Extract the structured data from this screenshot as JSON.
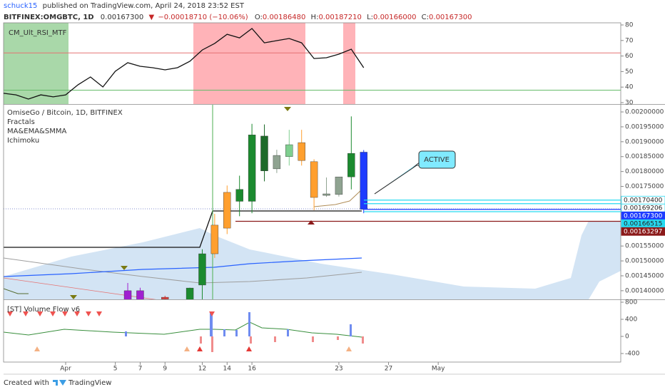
{
  "header": {
    "author": "schuck15",
    "published": "published on TradingView.com, April 24, 2018 23:52 EST",
    "symbol": "BITFINEX:OMGBTC, 1D",
    "last": "0.00167300",
    "arrow": "▼",
    "change": "−0.00018710 (−10.06%)",
    "ohlc": [
      {
        "key": "O:",
        "value": "0.00186480"
      },
      {
        "key": "H:",
        "value": "0.00187210"
      },
      {
        "key": "L:",
        "value": "0.00166000"
      },
      {
        "key": "C:",
        "value": "0.00167300"
      }
    ]
  },
  "chart_data": [
    {
      "type": "line",
      "title": "CM_Ult_RSI_MTF",
      "x": [
        -4,
        -3,
        -2,
        -1,
        0,
        1,
        2,
        3,
        4,
        5,
        6,
        7,
        8,
        9,
        10,
        11,
        12,
        13,
        14,
        15,
        16,
        17,
        18,
        19,
        20,
        21,
        22,
        23,
        24,
        25
      ],
      "series": [
        {
          "color": "#111111",
          "values": [
            36,
            35,
            32.3,
            35,
            33.7,
            35,
            41.5,
            46.5,
            40.1,
            50.2,
            55.7,
            53.4,
            52.5,
            51.1,
            52.5,
            56.6,
            63.9,
            68.1,
            74,
            71.7,
            77.7,
            68.5,
            69.9,
            71.3,
            68.5,
            58.4,
            58.9,
            61.2,
            64.4,
            52.5
          ]
        }
      ],
      "levels": [
        {
          "value": 62,
          "color": "#e57373"
        },
        {
          "value": 38,
          "color": "#66bb6a"
        }
      ],
      "ylim": [
        29.08,
        81.38
      ],
      "yticks": [
        30,
        40,
        50,
        60,
        70,
        80
      ],
      "xlim": [
        -4,
        45.7
      ]
    },
    {
      "type": "candlestick",
      "title": "OmiseGo / Bitcoin, 1D, BITFINEX",
      "indicators": [
        "Fractals",
        "MA&EMA&SMMA",
        "Ichimoku"
      ],
      "x": [
        6,
        7,
        9,
        11,
        12,
        13,
        14,
        15,
        16,
        17,
        18,
        19,
        20,
        21,
        22,
        23,
        24,
        25
      ],
      "open": [
        0.00136,
        0.00136,
        0.001378,
        0.00136,
        0.001419,
        0.001524,
        0.00161,
        0.0017,
        0.0017,
        0.001919,
        0.001809,
        0.00185,
        0.001897,
        0.001833,
        0.00172,
        0.001723,
        0.001782,
        0.001865
      ],
      "high": [
        0.001426,
        0.00141,
        0.001383,
        0.00141,
        0.001539,
        0.001658,
        0.001753,
        0.001786,
        0.00196,
        0.001958,
        0.001873,
        0.00194,
        0.00194,
        0.001841,
        0.00178,
        0.001782,
        0.001985,
        0.001872
      ],
      "low": [
        0.00135,
        0.00135,
        0.00136,
        0.00135,
        0.00136,
        0.00151,
        0.00159,
        0.00165,
        0.00166,
        0.001767,
        0.001795,
        0.00182,
        0.00182,
        0.00167,
        0.001715,
        0.001716,
        0.00174,
        0.00166
      ],
      "close": [
        0.0014,
        0.0014,
        0.001372,
        0.001409,
        0.001524,
        0.00162,
        0.00173,
        0.00174,
        0.001923,
        0.001802,
        0.001854,
        0.00189,
        0.001837,
        0.001713,
        0.001725,
        0.001782,
        0.001861,
        0.001673
      ],
      "colors": [
        "#a020d0",
        "#a020d0",
        "#e53935",
        "#1b8a2f",
        "#1b8a2f",
        "#ff9f2e",
        "#ff9f2e",
        "#1b8a2f",
        "#1b8a2f",
        "#1e6b2a",
        "#8fa391",
        "#7fcf8f",
        "#ff9f2e",
        "#ff9f2e",
        "#8fa391",
        "#8fa391",
        "#1b8a2f",
        "#1e3cff"
      ],
      "annotation": "ACTIVE",
      "price_lines": [
        {
          "value": 0.001704,
          "label": "0.00170400",
          "color": "#26d9f0",
          "bg": "#ffffff",
          "fg": "#222222"
        },
        {
          "value": 0.00169206,
          "label": "0.00169206",
          "color": "#26d9f0",
          "bg": "#ffffff",
          "fg": "#222222"
        },
        {
          "value": 0.001673,
          "label": "0.00167300",
          "color": "#1e3cff",
          "bg": "#1e3cff",
          "fg": "#ffffff"
        },
        {
          "value": 0.00166515,
          "label": "0.00166515",
          "color": "#26d9f0",
          "bg": "#26d9f0",
          "fg": "#222222"
        },
        {
          "value": 0.00163297,
          "label": "0.00163297",
          "color": "#8b1a1a",
          "bg": "#8b1a1a",
          "fg": "#ffffff"
        }
      ],
      "ylim": [
        0.001371,
        0.002024
      ],
      "yticks": [
        {
          "value": 0.002,
          "label": "0.00200000"
        },
        {
          "value": 0.00195,
          "label": "0.00195000"
        },
        {
          "value": 0.0019,
          "label": "0.00190000"
        },
        {
          "value": 0.00185,
          "label": "0.00185000"
        },
        {
          "value": 0.0018,
          "label": "0.00180000"
        },
        {
          "value": 0.00175,
          "label": "0.00175000"
        },
        {
          "value": 0.00155,
          "label": "0.00155000"
        },
        {
          "value": 0.0015,
          "label": "0.00150000"
        },
        {
          "value": 0.00145,
          "label": "0.00145000"
        },
        {
          "value": 0.0014,
          "label": "0.00140000"
        }
      ],
      "xlim": [
        -4,
        45.7
      ]
    },
    {
      "type": "volume",
      "title": "[ST] Volume Flow v6",
      "ylim": [
        -600,
        850
      ],
      "yticks": [
        800,
        400,
        0,
        -400
      ],
      "xlim": [
        -4,
        45.7
      ],
      "xticks": [
        {
          "value": 1,
          "label": "Apr"
        },
        5,
        9,
        12,
        16,
        23,
        27,
        {
          "value": 31,
          "label": "May"
        },
        7,
        14
      ]
    }
  ],
  "footer": {
    "created": "Created with",
    "brand": "TradingView"
  }
}
